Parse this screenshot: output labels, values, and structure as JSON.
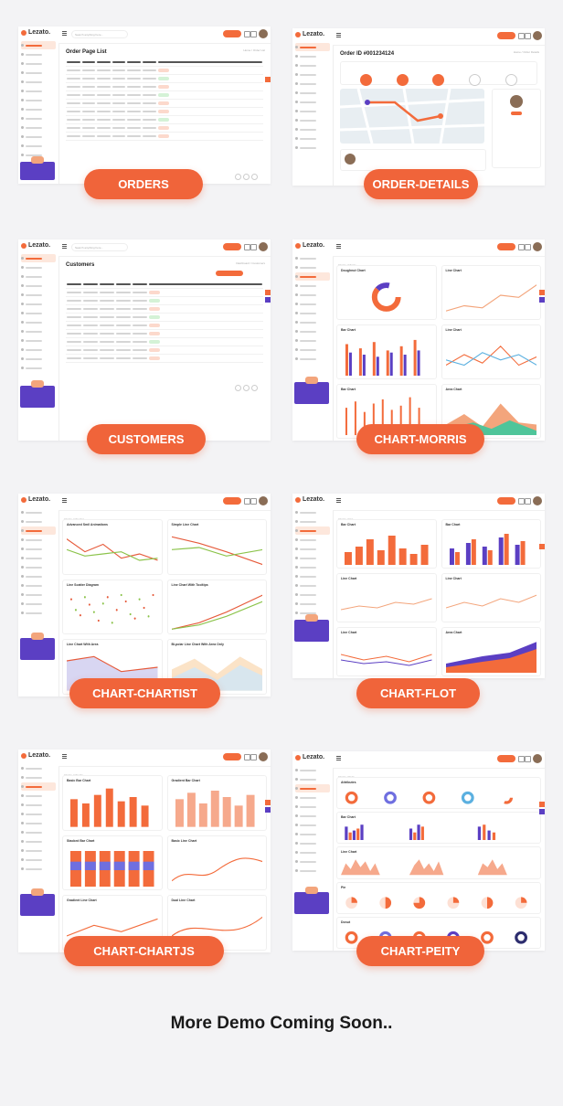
{
  "app_name": "Lezato.",
  "cards": [
    {
      "id": "orders",
      "label": "ORDERS",
      "page_title": "Order Page List",
      "search_placeholder": "Search anything here...",
      "breadcrumb": "Home / Order List"
    },
    {
      "id": "order-details",
      "label": "ORDER-DETAILS",
      "page_title": "Order ID #001234124",
      "search_placeholder": "",
      "breadcrumb": "Home / Order Details"
    },
    {
      "id": "customers",
      "label": "CUSTOMERS",
      "page_title": "Customers",
      "search_placeholder": "Search anything here...",
      "breadcrumb": "Dashboard / Customers"
    },
    {
      "id": "chart-morris",
      "label": "CHART-MORRIS",
      "page_title": "",
      "search_placeholder": "",
      "breadcrumb": "Charts / Morris",
      "panels": [
        "Doughnut Chart",
        "Line Chart",
        "Bar Chart",
        "Line Chart",
        "Bar Chart",
        "Area Chart"
      ]
    },
    {
      "id": "chart-chartist",
      "label": "CHART-CHARTIST",
      "page_title": "",
      "search_placeholder": "",
      "breadcrumb": "Charts / Chartist",
      "panels": [
        "Advanced Smil Animations",
        "Simple Line Chart",
        "Line Scatter Diagram",
        "Line Chart With Tooltips",
        "Line Chart With Area",
        "Bi-polar Line Chart With Area Only"
      ]
    },
    {
      "id": "chart-flot",
      "label": "CHART-FLOT",
      "page_title": "",
      "search_placeholder": "",
      "breadcrumb": "Charts / Flot",
      "panels": [
        "Bar Chart",
        "Bar Chart",
        "Line Chart",
        "Line Chart",
        "Line Chart",
        "Area Chart"
      ]
    },
    {
      "id": "chart-chartjs",
      "label": "CHART-CHARTJS",
      "page_title": "",
      "search_placeholder": "",
      "breadcrumb": "Charts / Chartjs",
      "panels": [
        "Basic Bar Chart",
        "Gradient Bar Chart",
        "Stacked Bar Chart",
        "Basic Line Chart",
        "Gradient Line Chart",
        "Dual Line Chart"
      ]
    },
    {
      "id": "chart-peity",
      "label": "CHART-PEITY",
      "page_title": "",
      "search_placeholder": "",
      "breadcrumb": "Charts / Peity",
      "panels": [
        "Attributes",
        "Bar Chart",
        "Line Chart",
        "Pie",
        "Donut"
      ]
    }
  ],
  "footer_text": "More Demo Coming Soon..",
  "colors": {
    "accent": "#f0643a",
    "secondary": "#5b3fc3",
    "background": "#f3f3f5"
  }
}
